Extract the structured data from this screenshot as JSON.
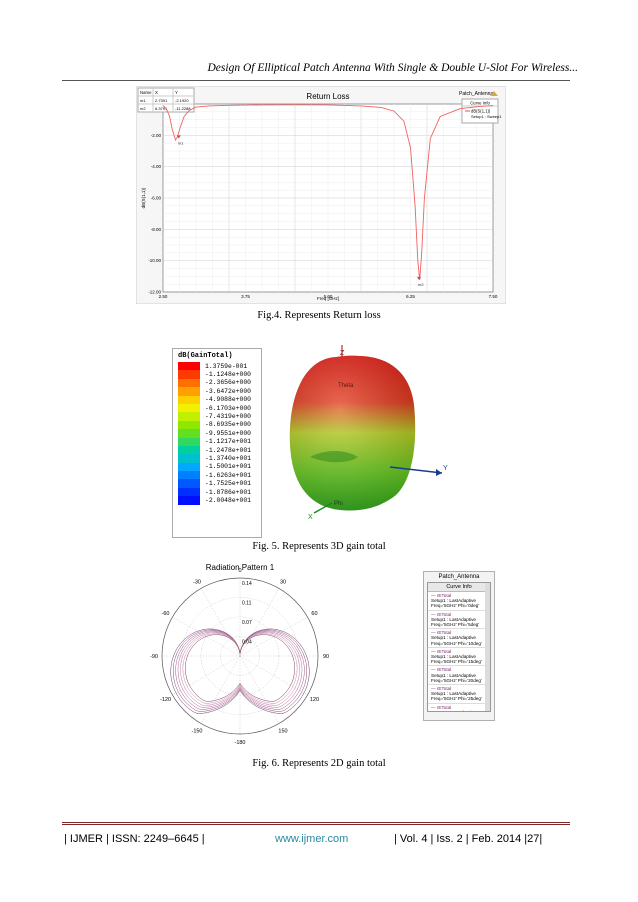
{
  "header": {
    "title": "Design Of Elliptical Patch Antenna With Single & Double U-Slot For Wireless..."
  },
  "fig4": {
    "caption": "Fig.4. Represents Return loss",
    "chart_data": {
      "type": "line",
      "title": "Return Loss",
      "project_label": "Patch_Antenna",
      "xlabel": "Freq [GHz]",
      "ylabel": "dB(S(1,1))",
      "xlim": [
        2.5,
        7.5
      ],
      "ylim": [
        -12,
        0
      ],
      "x_ticks": [
        "2.50",
        "3.75",
        "5.00",
        "6.25",
        "7.50"
      ],
      "y_ticks": [
        "-2.00",
        "-4.00",
        "-6.00",
        "-8.00",
        "-10.00",
        "-12.00"
      ],
      "grid": true,
      "legend_title": "Curve Info",
      "legend_entry": "dB(S(1,1))",
      "legend_entry2": "Setup1 : Sweep1",
      "series": [
        {
          "name": "dB(S(1,1))",
          "x": [
            2.5,
            2.55,
            2.6,
            2.64,
            2.69,
            2.72,
            2.76,
            2.82,
            2.9,
            3.0,
            3.2,
            3.5,
            4.0,
            4.5,
            5.0,
            5.5,
            5.8,
            6.0,
            6.15,
            6.25,
            6.32,
            6.36,
            6.39,
            6.42,
            6.46,
            6.55,
            6.7,
            7.0,
            7.3,
            7.5
          ],
          "y": [
            -0.1,
            -0.3,
            -0.8,
            -1.6,
            -2.3,
            -2.08,
            -1.5,
            -0.8,
            -0.4,
            -0.2,
            -0.12,
            -0.08,
            -0.06,
            -0.05,
            -0.06,
            -0.12,
            -0.22,
            -0.45,
            -1.1,
            -2.8,
            -6.5,
            -10.0,
            -11.23,
            -9.5,
            -6.0,
            -2.2,
            -0.8,
            -0.3,
            -0.15,
            -0.1
          ]
        }
      ],
      "markers": [
        {
          "name": "m1",
          "x": 2.7391,
          "y": -2.192
        },
        {
          "name": "m2",
          "x": 6.3791,
          "y": -11.2288
        }
      ],
      "marker_table": {
        "headers": [
          "Name",
          "X",
          "Y"
        ],
        "rows": [
          [
            "m1",
            "2.7391",
            "-2.1920"
          ],
          [
            "m2",
            "6.3791",
            "-11.2288"
          ]
        ]
      }
    }
  },
  "fig5": {
    "caption": "Fig. 5.  Represents 3D gain total",
    "legend_title": "dB(GainTotal)",
    "legend_values": [
      "1.3759e-001",
      "-1.1248e+000",
      "-2.3656e+000",
      "-3.6472e+000",
      "-4.9088e+000",
      "-6.1703e+000",
      "-7.4319e+000",
      "-8.6935e+000",
      "-9.9551e+000",
      "-1.1217e+001",
      "-1.2478e+001",
      "-1.3740e+001",
      "-1.5001e+001",
      "-1.6263e+001",
      "-1.7525e+001",
      "-1.8786e+001",
      "-2.0048e+001"
    ],
    "legend_colors": [
      "#ff0000",
      "#ff3a00",
      "#ff7000",
      "#ffa000",
      "#ffd000",
      "#f0f000",
      "#c0f000",
      "#90e800",
      "#60e020",
      "#30d860",
      "#00d0a0",
      "#00c0d0",
      "#00a8ff",
      "#0080ff",
      "#0058ff",
      "#0030ff",
      "#0010ff"
    ],
    "axis_labels": {
      "z": "Z",
      "y": "Y",
      "x": "X",
      "theta": "Theta",
      "phi": "Phi"
    }
  },
  "fig6": {
    "caption": "Fig. 6.  Represents 2D gain total",
    "title": "Radiation Pattern 1",
    "radial_ticks": [
      "0.14",
      "0.11",
      "0.07",
      "0.04"
    ],
    "angle_labels": [
      "0",
      "30",
      "60",
      "90",
      "120",
      "150",
      "-180",
      "-150",
      "-120",
      "-90",
      "-60",
      "-30"
    ],
    "project_label": "Patch_Antenna",
    "curve_info_label": "Curve Info",
    "curves": [
      {
        "name": "rETotal",
        "setup": "Setup1 : LastAdaptive",
        "freq": "Freq='5GHz' Phi='0deg'"
      },
      {
        "name": "rETotal",
        "setup": "Setup1 : LastAdaptive",
        "freq": "Freq='5GHz' Phi='5deg'"
      },
      {
        "name": "rETotal",
        "setup": "Setup1 : LastAdaptive",
        "freq": "Freq='5GHz' Phi='10deg'"
      },
      {
        "name": "rETotal",
        "setup": "Setup1 : LastAdaptive",
        "freq": "Freq='5GHz' Phi='15deg'"
      },
      {
        "name": "rETotal",
        "setup": "Setup1 : LastAdaptive",
        "freq": "Freq='5GHz' Phi='20deg'"
      },
      {
        "name": "rETotal",
        "setup": "Setup1 : LastAdaptive",
        "freq": "Freq='5GHz' Phi='25deg'"
      },
      {
        "name": "rETotal",
        "setup": "Setup1 : LastAdaptive",
        "freq": "Freq='5GHz' Phi='30deg'"
      }
    ]
  },
  "footer": {
    "left": "| IJMER | ISSN: 2249–6645 |",
    "center": "www.ijmer.com",
    "right": "| Vol. 4 | Iss. 2 | Feb. 2014 |27|"
  }
}
